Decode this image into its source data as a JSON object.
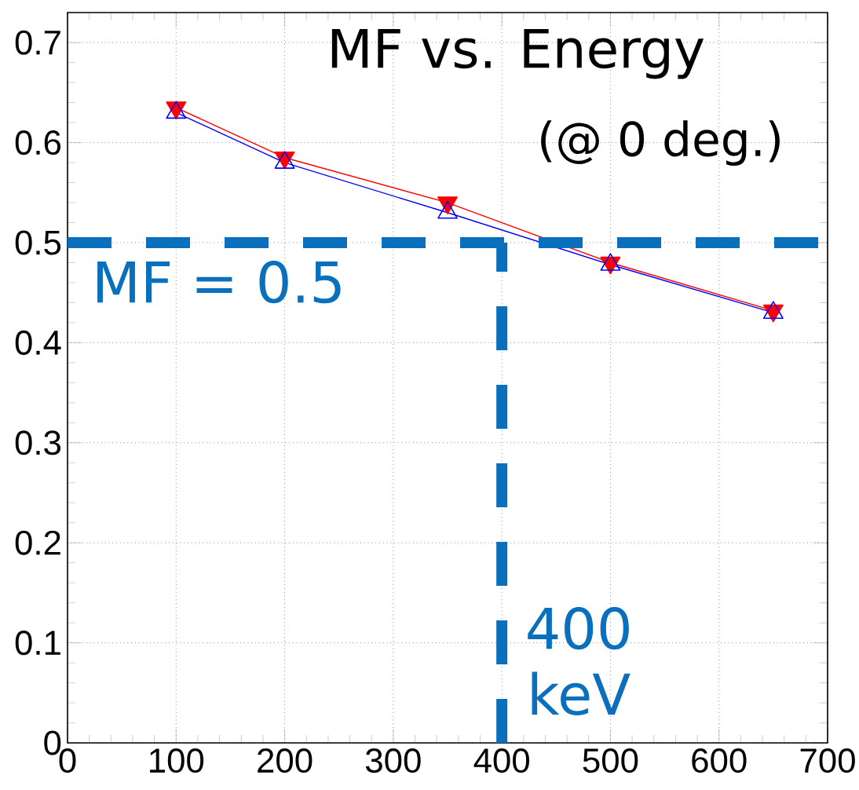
{
  "chart_data": {
    "type": "line",
    "title": "MF vs. Energy",
    "subtitle": "(@ 0 deg.)",
    "x": [
      100,
      200,
      350,
      500,
      650
    ],
    "series": [
      {
        "color": "#ff0000",
        "marker": "triangle-down",
        "values": [
          0.635,
          0.585,
          0.54,
          0.48,
          0.432
        ]
      },
      {
        "color": "#0000ff",
        "marker": "triangle",
        "values": [
          0.63,
          0.58,
          0.53,
          0.478,
          0.43
        ]
      }
    ],
    "xlim": [
      0,
      700
    ],
    "xticks": [
      0,
      100,
      200,
      300,
      400,
      500,
      600,
      700
    ],
    "ylim": [
      0,
      0.73
    ],
    "yticks": [
      0,
      0.1,
      0.2,
      0.3,
      0.4,
      0.5,
      0.6,
      0.7
    ],
    "grid": true,
    "line_style": "solid",
    "ref_lines": [
      {
        "axis": "y",
        "value": 0.5,
        "label": "MF = 0.5",
        "color": "#0a6fbd",
        "line_style": "dashed"
      },
      {
        "axis": "x",
        "value": 400,
        "label": "400 keV",
        "color": "#0a6fbd",
        "line_style": "dashed"
      }
    ]
  }
}
